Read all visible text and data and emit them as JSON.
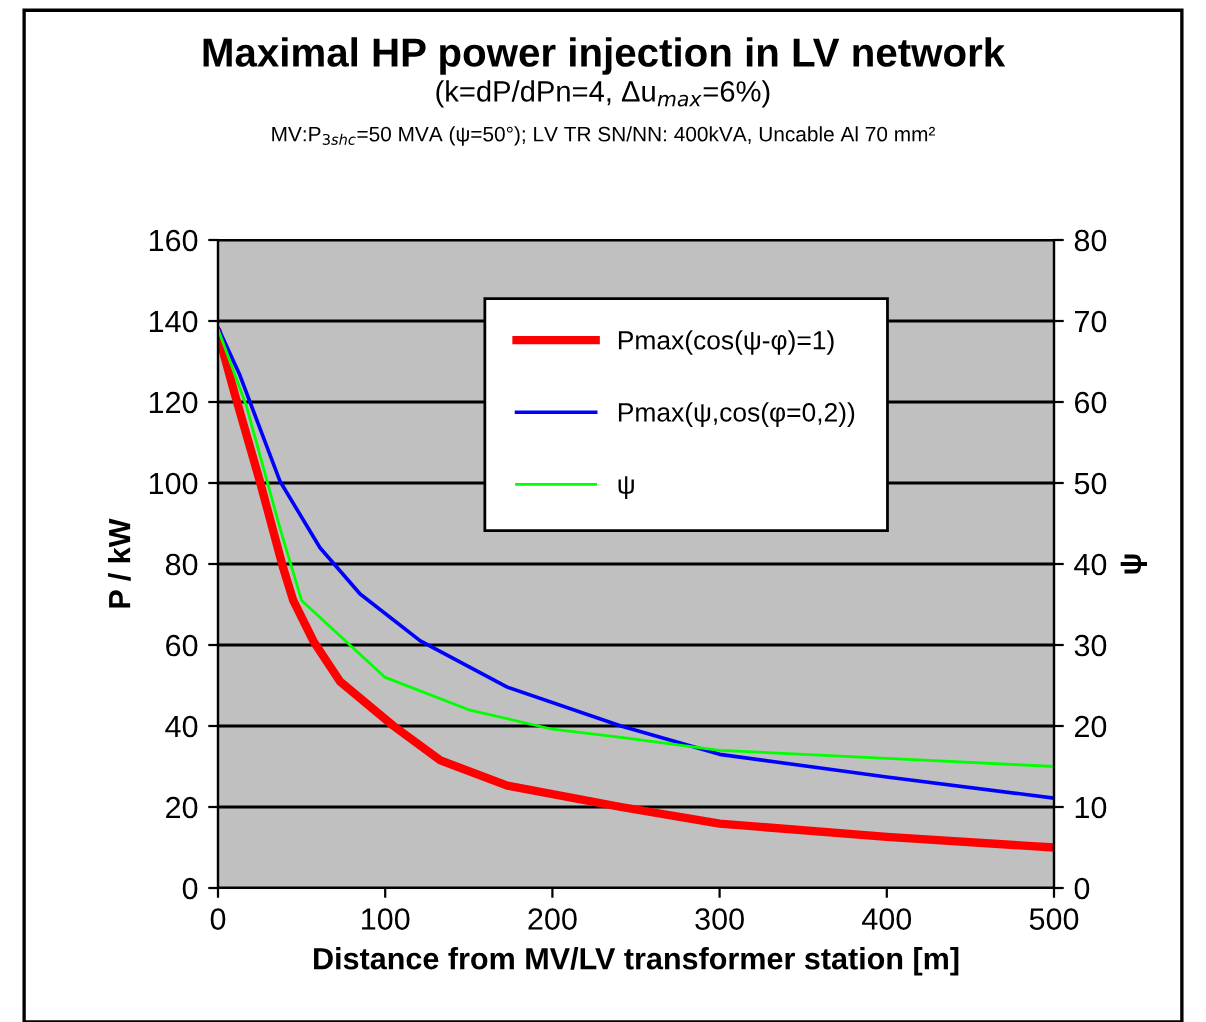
{
  "chart_data": {
    "type": "line",
    "title": "Maximal HP power injection in LV network",
    "subtitle": "(k=dP/dPn=4, Δu$_{max}$=6%)",
    "annotations": [
      "MV:P$_{3shc}$=50 MVA (ψ=50°); LV TR SN/NN: 400kVA, Uncable Al 70 mm²"
    ],
    "xlabel": "Distance from MV/LV transformer station [m]",
    "ylabel": "P / kW",
    "y2label": "ψ",
    "series": [
      {
        "name": "Pmax(cos(ψ-φ)=1)",
        "color": "#ff0000",
        "x": [
          0,
          10,
          25,
          39,
          45,
          57,
          73,
          105,
          133,
          173,
          241,
          300,
          400,
          500
        ],
        "values": [
          137,
          122,
          100.5,
          79,
          71,
          61,
          51,
          40,
          31.5,
          25.3,
          20,
          15.9,
          12.6,
          10
        ]
      },
      {
        "name": "Pmax(ψ,cos(φ=0,2))",
        "color": "#0000ff",
        "x": [
          0,
          13,
          37,
          61,
          85,
          121,
          173,
          241,
          300,
          400,
          500
        ],
        "values": [
          138.4,
          126.7,
          100.5,
          84,
          72.6,
          61,
          49.6,
          40,
          33,
          27.4,
          22.2
        ]
      },
      {
        "name": "ψ",
        "color": "#00ff00",
        "axis": "y2",
        "x": [
          0,
          17,
          37,
          50,
          100,
          150,
          200,
          241,
          300,
          400,
          500
        ],
        "values": [
          69,
          59.5,
          44.5,
          35.5,
          26,
          22,
          19.6,
          18.6,
          17,
          16,
          15
        ]
      }
    ],
    "xlim": [
      0,
      500
    ],
    "xticks": [
      0,
      100,
      200,
      300,
      400,
      500
    ],
    "ylim": [
      0,
      160
    ],
    "yticks": [
      0,
      20,
      40,
      60,
      80,
      100,
      120,
      140,
      160
    ],
    "y2lim": [
      0,
      80
    ],
    "y2ticks": [
      0,
      10,
      20,
      30,
      40,
      50,
      60,
      70,
      80
    ],
    "grid": "y",
    "legend": "top",
    "marker": "none",
    "line_style": "solid"
  }
}
